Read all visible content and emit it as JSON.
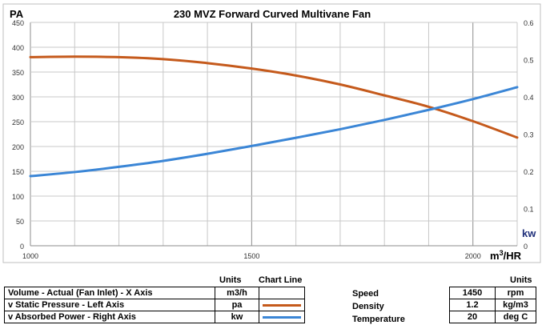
{
  "chart_data": {
    "type": "line",
    "title": "230 MVZ Forward Curved Multivane Fan",
    "xlabel": "m3/HR",
    "ylabel": "PA",
    "y2label": "kw",
    "xlim": [
      1000,
      2100
    ],
    "ylim": [
      0,
      450
    ],
    "y2lim": [
      0,
      0.6
    ],
    "xticks": [
      "1000",
      "1500",
      "2000"
    ],
    "yticks": [
      "0",
      "50",
      "100",
      "150",
      "200",
      "250",
      "300",
      "350",
      "400",
      "450"
    ],
    "y2ticks": [
      "0",
      "0.1",
      "0.2",
      "0.3",
      "0.4",
      "0.5",
      "0.6"
    ],
    "grid": true,
    "x": [
      1000,
      1100,
      1200,
      1300,
      1400,
      1500,
      1600,
      1700,
      1800,
      1900,
      2000,
      2100
    ],
    "series": [
      {
        "name": "Static Pressure",
        "axis": "left",
        "color": "#c55a1c",
        "values": [
          380,
          381,
          380,
          376,
          368,
          357,
          343,
          325,
          303,
          280,
          251,
          218
        ]
      },
      {
        "name": "Absorbed Power",
        "axis": "right",
        "color": "#3b86d6",
        "values": [
          0.187,
          0.198,
          0.212,
          0.228,
          0.247,
          0.268,
          0.29,
          0.313,
          0.338,
          0.365,
          0.394,
          0.426
        ]
      }
    ]
  },
  "legend": {
    "units_header": "Units",
    "chart_line_header": "Chart Line",
    "rows": [
      {
        "label": "Volume - Actual (Fan Inlet) - X Axis",
        "units": "m3/h"
      },
      {
        "label": "v Static Pressure - Left Axis",
        "units": "pa"
      },
      {
        "label": "v Absorbed Power - Right Axis",
        "units": "kw"
      }
    ]
  },
  "conditions": {
    "units_header": "Units",
    "rows": [
      {
        "label": "Speed",
        "value": "1450",
        "units": "rpm"
      },
      {
        "label": "Density",
        "value": "1.2",
        "units": "kg/m3"
      },
      {
        "label": "Temperature",
        "value": "20",
        "units": "deg C"
      }
    ]
  }
}
